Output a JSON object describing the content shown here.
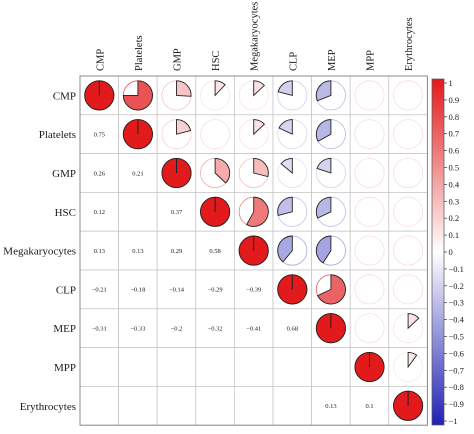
{
  "chart_data": {
    "type": "heatmap",
    "style": "correlogram",
    "upper_method": "pie",
    "lower_method": "number",
    "title": "",
    "xlabel": "",
    "ylabel": "",
    "variables": [
      "CMP",
      "Platelets",
      "GMP",
      "HSC",
      "Megakaryocytes",
      "CLP",
      "MEP",
      "MPP",
      "Erythrocytes"
    ],
    "matrix": [
      [
        1,
        0.75,
        0.26,
        0.12,
        0.13,
        -0.21,
        -0.31,
        0,
        0
      ],
      [
        0.75,
        1,
        0.21,
        0,
        0.13,
        -0.18,
        -0.33,
        0,
        0
      ],
      [
        0.26,
        0.21,
        1,
        0.37,
        0.29,
        -0.14,
        -0.2,
        0,
        0
      ],
      [
        0.12,
        0,
        0.37,
        1,
        0.58,
        -0.29,
        -0.32,
        0,
        0
      ],
      [
        0.13,
        0.13,
        0.29,
        0.58,
        1,
        -0.39,
        -0.41,
        0,
        0
      ],
      [
        -0.21,
        -0.18,
        -0.14,
        -0.29,
        -0.39,
        1,
        0.68,
        0,
        0
      ],
      [
        -0.31,
        -0.33,
        -0.2,
        -0.32,
        -0.41,
        0.68,
        1,
        0,
        0.13
      ],
      [
        0,
        0,
        0,
        0,
        0,
        0,
        0,
        1,
        0.1
      ],
      [
        0,
        0,
        0,
        0,
        0,
        0,
        0.13,
        0.1,
        1
      ]
    ],
    "lower_labels": [
      [
        "",
        "",
        "",
        "",
        "",
        "",
        "",
        "",
        ""
      ],
      [
        "0.75",
        "",
        "",
        "",
        "",
        "",
        "",
        "",
        ""
      ],
      [
        "0.26",
        "0.21",
        "",
        "",
        "",
        "",
        "",
        "",
        ""
      ],
      [
        "0.12",
        "",
        "0.37",
        "",
        "",
        "",
        "",
        "",
        ""
      ],
      [
        "0.13",
        "0.13",
        "0.29",
        "0.58",
        "",
        "",
        "",
        "",
        ""
      ],
      [
        "−0.21",
        "−0.18",
        "−0.14",
        "−0.29",
        "−0.39",
        "",
        "",
        "",
        ""
      ],
      [
        "−0.31",
        "−0.33",
        "−0.2",
        "−0.32",
        "−0.41",
        "0.68",
        "",
        "",
        ""
      ],
      [
        "",
        "",
        "",
        "",
        "",
        "",
        "",
        "",
        ""
      ],
      [
        "",
        "",
        "",
        "",
        "",
        "",
        "0.13",
        "0.1",
        ""
      ]
    ],
    "colorbar": {
      "range": [
        -1,
        1
      ],
      "ticks": [
        "1",
        "0.9",
        "0.8",
        "0.7",
        "0.6",
        "0.5",
        "0.4",
        "0.3",
        "0.2",
        "0.1",
        "0",
        "−0.1",
        "−0.2",
        "−0.3",
        "−0.4",
        "−0.5",
        "−0.6",
        "−0.7",
        "−0.8",
        "−0.9",
        "−1"
      ],
      "positive_color": "#e31a1c",
      "negative_color": "#2121b5",
      "neutral_color": "#ffffff"
    }
  }
}
